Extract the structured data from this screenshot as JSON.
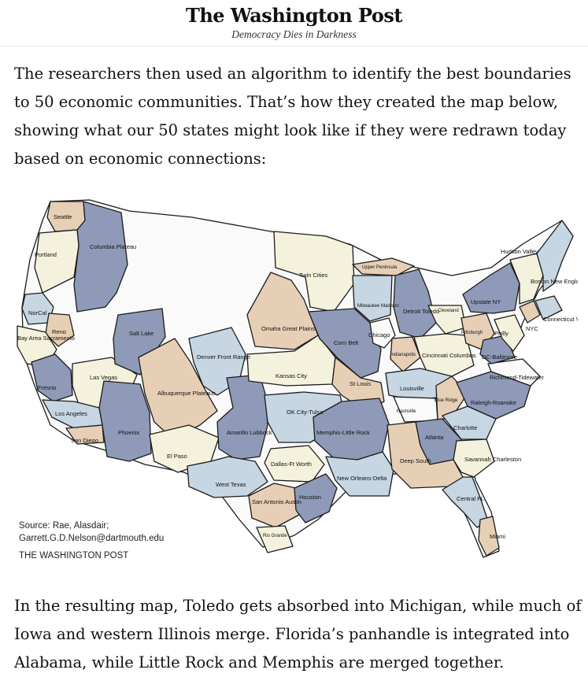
{
  "header": {
    "logo": "The Washington Post",
    "tagline": "Democracy Dies in Darkness"
  },
  "article": {
    "paragraph_1": "The researchers then used an algorithm to identify the best boundaries to 50 economic communities. That’s how they created the map below, showing what our 50 states might look like if they were redrawn today based on economic connections:",
    "paragraph_2": "In the resulting map, Toledo gets absorbed into Michigan, while much of Iowa and western Illinois merge. Florida’s panhandle is integrated into Alabama, while Little Rock and Memphis are merged together."
  },
  "map": {
    "colors": {
      "tan": "#e7cfb6",
      "blue": "#8e9ab8",
      "light_blue": "#c6d6e3",
      "cream": "#f4f2dc",
      "white": "#fafafa",
      "border": "#1b1b1b"
    },
    "credit": {
      "source_line_1": "Source: Rae, Alasdair;",
      "source_line_2": "Garrett.G.D.Nelson@dartmouth.edu",
      "publisher": "THE WASHINGTON POST"
    },
    "labels": {
      "seattle": "Seattle",
      "columbia_plateau": "Columbia Plateau",
      "portland": "Portland",
      "norcal": "NorCal",
      "reno": "Reno",
      "bay_area": "Bay Area Sacramento",
      "salt_lake": "Salt Lake",
      "fresno": "Fresno",
      "las_vegas": "Las Vegas",
      "los_angeles": "Los Angeles",
      "san_diego": "San Diego",
      "phoenix": "Phoenix",
      "albuquerque": "Albuquerque Plateaus",
      "denver": "Denver Front Range",
      "el_paso": "El Paso",
      "amarillo": "Amarillo Lubbock",
      "west_texas": "West Texas",
      "twin_cities": "Twin Cities",
      "omaha": "Omaha Great Plains",
      "kansas_city": "Kansas City",
      "ok_city": "OK City-Tulsa",
      "dallas": "Dallas-Ft Worth",
      "san_antonio": "San Antonio Austin",
      "rio_grande": "Rio Grande",
      "houston": "Houston",
      "upper_peninsula": "Upper Peninsula",
      "milwaukee": "Milwaukee Madison",
      "chicago": "Chicago",
      "corn_belt": "Corn Belt",
      "st_louis": "St Louis",
      "memphis": "Memphis-Little Rock",
      "new_orleans": "New Orleans-Delta",
      "detroit": "Detroit Toledo",
      "cleveland": "Cleveland",
      "indianapolis": "Indianapolis",
      "cincinnati": "Cincinnati Columbus",
      "louisville": "Louisville",
      "nashville": "Nashville",
      "blue_ridge": "Blue Ridge",
      "atlanta": "Atlanta",
      "deep_south": "Deep South",
      "charlotte": "Charlotte",
      "savannah": "Savannah Charleston",
      "raleigh": "Raleigh-Roanoke",
      "richmond": "Richmond-Tidewater",
      "dc": "DC-Baltimore",
      "pittsburgh": "Pittsburgh",
      "philly": "Philly",
      "nyc": "NYC",
      "upstate_ny": "Upstate NY",
      "hudson_valley": "Hudson Valley",
      "boston": "Boston New England",
      "connecticut": "Connecticut Valley",
      "central_fl": "Central FL",
      "miami": "Miami"
    }
  }
}
